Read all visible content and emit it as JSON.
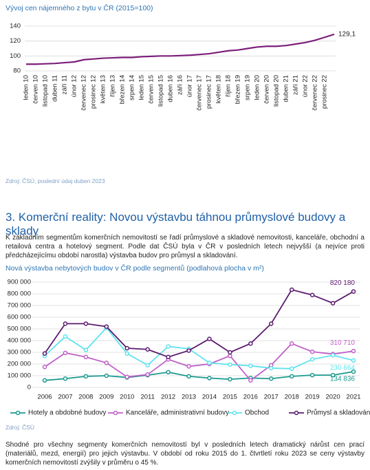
{
  "chart_data": [
    {
      "type": "line",
      "title": "Vývoj cen nájemného z bytu v ČR (2015=100)",
      "source": "Zdroj: ČSÚ, poslední údaj duben 2023",
      "categories": [
        "leden 10",
        "červen 10",
        "listopad 10",
        "duben 11",
        "září 11",
        "únor 12",
        "červenec 12",
        "prosinec 12",
        "květen 13",
        "říjen 13",
        "březen 14",
        "srpen 14",
        "leden 15",
        "červen 15",
        "listopad 15",
        "duben 16",
        "září 16",
        "únor 17",
        "červenec 17",
        "prosinec 17",
        "květen 18",
        "říjen 18",
        "březen 19",
        "srpen 19",
        "leden 20",
        "červen 20",
        "listopad 20",
        "duben 21",
        "září 21",
        "únor 22",
        "červenec 22",
        "prosinec 22",
        null
      ],
      "values": [
        89,
        89,
        89.5,
        90,
        91,
        92,
        95,
        96,
        97,
        97.5,
        98,
        98,
        99,
        99.5,
        100,
        100,
        100.5,
        101,
        102,
        103,
        105,
        107,
        108,
        110,
        112,
        113,
        113,
        114,
        116,
        118,
        121,
        125,
        129.1
      ],
      "value_labels": [
        null,
        null,
        null,
        null,
        null,
        null,
        null,
        null,
        null,
        null,
        null,
        null,
        null,
        null,
        null,
        null,
        null,
        null,
        null,
        null,
        null,
        null,
        null,
        null,
        null,
        null,
        null,
        null,
        null,
        null,
        null,
        null,
        "129,1"
      ],
      "color": "#7b1e7a",
      "ylim": [
        80,
        140
      ],
      "yticks": [
        80,
        100,
        120,
        140
      ],
      "grid": true
    },
    {
      "type": "line",
      "title": "Nová výstavba nebytových budov v ČR podle segmentů (podlahová plocha v m²)",
      "source": "Zdroj: ČSÚ",
      "categories": [
        "2006",
        "2007",
        "2008",
        "2009",
        "2010",
        "2011",
        "2012",
        "2013",
        "2014",
        "2015",
        "2016",
        "2017",
        "2018",
        "2019",
        "2020",
        "2021"
      ],
      "series": [
        {
          "name": "Hotely a obdobné budovy",
          "color": "#1a9a8f",
          "values": [
            60000,
            75000,
            95000,
            100000,
            85000,
            105000,
            130000,
            95000,
            80000,
            70000,
            80000,
            75000,
            95000,
            105000,
            105000,
            134836
          ],
          "value_labels": [
            null,
            null,
            null,
            null,
            null,
            null,
            null,
            null,
            null,
            null,
            null,
            null,
            null,
            null,
            null,
            "134 836"
          ]
        },
        {
          "name": "Kanceláře, administrativní budovy",
          "color": "#c05fc8",
          "values": [
            175000,
            295000,
            260000,
            210000,
            90000,
            110000,
            240000,
            180000,
            200000,
            270000,
            60000,
            190000,
            375000,
            305000,
            285000,
            310710
          ],
          "value_labels": [
            null,
            null,
            null,
            null,
            null,
            null,
            null,
            null,
            null,
            null,
            null,
            null,
            null,
            null,
            null,
            "310 710"
          ]
        },
        {
          "name": "Obchod",
          "color": "#5ee3ee",
          "values": [
            270000,
            435000,
            320000,
            510000,
            290000,
            190000,
            350000,
            330000,
            210000,
            195000,
            185000,
            165000,
            160000,
            240000,
            275000,
            230664
          ],
          "value_labels": [
            null,
            null,
            null,
            null,
            null,
            null,
            null,
            null,
            null,
            null,
            null,
            null,
            null,
            null,
            null,
            "230 664"
          ]
        },
        {
          "name": "Průmysl a skladování",
          "color": "#5b1a6e",
          "values": [
            290000,
            545000,
            545000,
            520000,
            335000,
            325000,
            260000,
            315000,
            415000,
            300000,
            375000,
            545000,
            835000,
            790000,
            720000,
            820180
          ],
          "value_labels": [
            null,
            null,
            null,
            null,
            null,
            null,
            null,
            null,
            null,
            null,
            null,
            null,
            null,
            null,
            null,
            "820 180"
          ]
        }
      ],
      "ylim": [
        0,
        900000
      ],
      "yticks": [
        0,
        {
          "value": 100000,
          "label": "100 000"
        },
        {
          "value": 200000,
          "label": "200 000"
        },
        {
          "value": 300000,
          "label": "300 000"
        },
        {
          "value": 400000,
          "label": "400 000"
        },
        {
          "value": 500000,
          "label": "500 000"
        },
        {
          "value": 600000,
          "label": "600 000"
        },
        {
          "value": 700000,
          "label": "700 000"
        },
        {
          "value": 800000,
          "label": "800 000"
        },
        {
          "value": 900000,
          "label": "900 000"
        }
      ],
      "grid": true
    }
  ],
  "section": {
    "heading": "3.  Komerční reality: Novou výstavbu táhnou průmyslové budovy a sklady",
    "paragraphs": [
      "K základním segmentům komerčních nemovitostí se řadí průmyslové a skladové nemovitosti, kanceláře, obchodní a retailová centra a hotelový segment. Podle dat ČSÚ byla v ČR v posledních letech nejvyšší (a nejvíce proti předcházejícímu období narostla) výstavba budov pro průmysl a skladování.",
      "Shodné pro všechny segmenty komerčních nemovitostí byl v posledních letech dramatický nárůst cen prací (materiálů, mezd, energií) pro jejich výstavbu. V období od roku 2015 do 1. čtvrtletí roku 2023 se ceny výstavby komerčních nemovitostí zvýšily v průměru o 45 %."
    ]
  }
}
